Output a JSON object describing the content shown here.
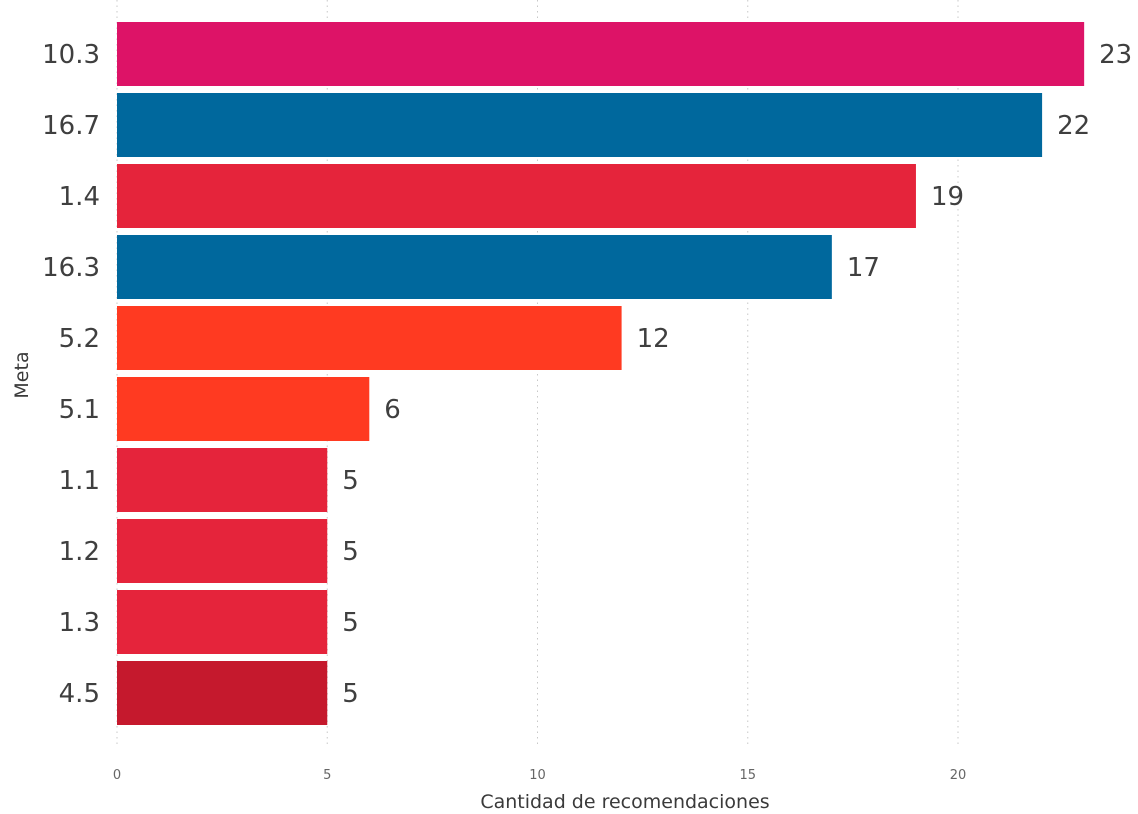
{
  "chart_data": {
    "type": "bar",
    "orientation": "horizontal",
    "title": "",
    "xlabel": "Cantidad de recomendaciones",
    "ylabel": "Meta",
    "categories": [
      "10.3",
      "16.7",
      "1.4",
      "16.3",
      "5.2",
      "5.1",
      "1.1",
      "1.2",
      "1.3",
      "4.5"
    ],
    "values": [
      23,
      22,
      19,
      17,
      12,
      6,
      5,
      5,
      5,
      5
    ],
    "colors": [
      "#DD1367",
      "#00689D",
      "#E5243B",
      "#00689D",
      "#FF3A21",
      "#FF3A21",
      "#E5243B",
      "#E5243B",
      "#E5243B",
      "#C5192D"
    ],
    "xlim": [
      0,
      23
    ],
    "x_ticks": [
      "0",
      "5",
      "10",
      "15",
      "20"
    ],
    "x_tick_values": [
      0,
      5,
      10,
      15,
      20
    ],
    "grid": "vertical dotted",
    "legend": "none",
    "data_labels": true
  }
}
